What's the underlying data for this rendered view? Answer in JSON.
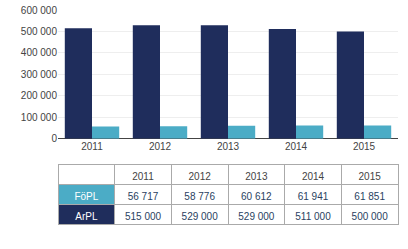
{
  "chart_data": {
    "type": "bar",
    "categories": [
      "2011",
      "2012",
      "2013",
      "2014",
      "2015"
    ],
    "series": [
      {
        "name": "ArPL",
        "color": "#1f2d5c",
        "values": [
          515000,
          529000,
          529000,
          511000,
          500000
        ],
        "value_labels": [
          "515 000",
          "529 000",
          "529 000",
          "511 000",
          "500 000"
        ]
      },
      {
        "name": "FöPL",
        "color": "#4bacc6",
        "values": [
          56717,
          58776,
          60612,
          61941,
          61851
        ],
        "value_labels": [
          "56 717",
          "58 776",
          "60 612",
          "61 941",
          "61 851"
        ]
      }
    ],
    "ylim": [
      0,
      600000
    ],
    "yticks": [
      0,
      {
        "value": 100000,
        "label": "100 000"
      },
      {
        "value": 200000,
        "label": "200 000"
      },
      {
        "value": 300000,
        "label": "300 000"
      },
      {
        "value": 400000,
        "label": "400 000"
      },
      {
        "value": 500000,
        "label": "500 000"
      },
      {
        "value": 600000,
        "label": "600 000"
      }
    ],
    "grid": true
  }
}
